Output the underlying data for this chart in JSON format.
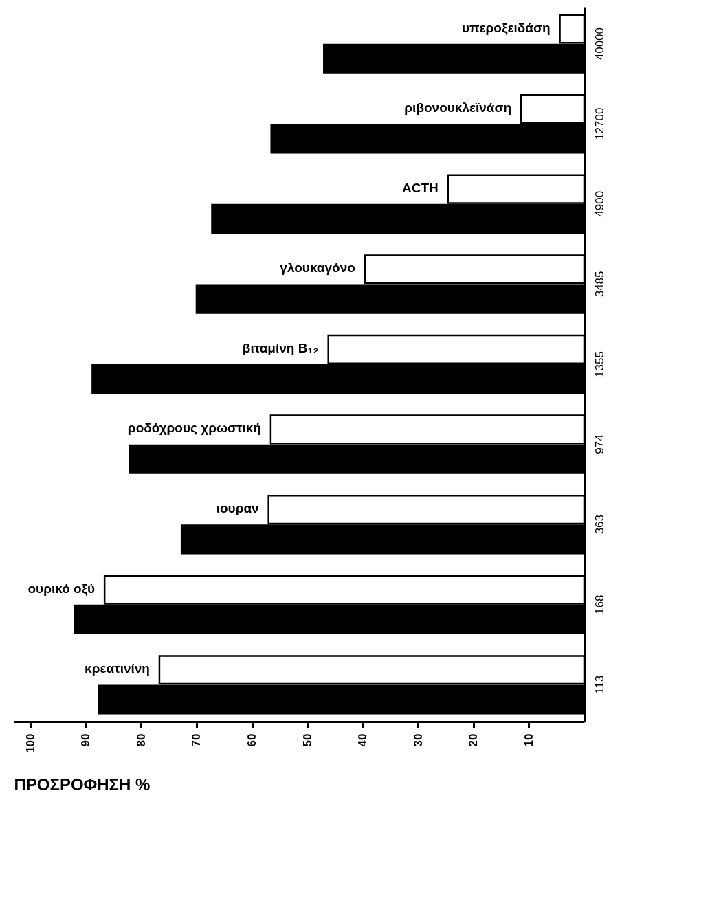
{
  "chart_data": {
    "type": "bar",
    "orientation": "horizontal",
    "xlabel": "ΠΡΟΣΡΟΦΗΣΗ %",
    "categories": [
      "40000",
      "12700",
      "4900",
      "3485",
      "1355",
      "974",
      "363",
      "168",
      "113"
    ],
    "series": [
      {
        "color": "#ffffff",
        "values": [
          4.4,
          11.4,
          24.6,
          39.6,
          46.2,
          56.6,
          57,
          86.6,
          76.7
        ]
      },
      {
        "color": "#000000",
        "values": [
          47,
          56.5,
          67.2,
          70,
          88.8,
          82,
          72.7,
          92,
          87.6
        ]
      }
    ],
    "xlim": [
      103,
      0
    ],
    "xticks": [
      100,
      90,
      80,
      70,
      60,
      50,
      40,
      30,
      20,
      10
    ],
    "annotations": [
      {
        "text": "υπεροξειδάση",
        "x": 4.4,
        "y": "40000"
      },
      {
        "text": "ριβονουκλεϊνάση",
        "x": 11.4,
        "y": "12700"
      },
      {
        "text": "ACTH",
        "x": 24.6,
        "y": "4900"
      },
      {
        "text": "γλουκαγόνο",
        "x": 39.6,
        "y": "3485"
      },
      {
        "text": "βιταμίνη B₁₂",
        "x": 46.2,
        "y": "1355"
      },
      {
        "text": "ροδόχρους χρωστική",
        "x": 56.6,
        "y": "974"
      },
      {
        "text": "ιουραν",
        "x": 57,
        "y": "363"
      },
      {
        "text": "ουρικό οξύ",
        "x": 86.6,
        "y": "168"
      },
      {
        "text": "κρεατινίνη",
        "x": 76.7,
        "y": "113"
      }
    ],
    "grid": false,
    "legend": false
  }
}
